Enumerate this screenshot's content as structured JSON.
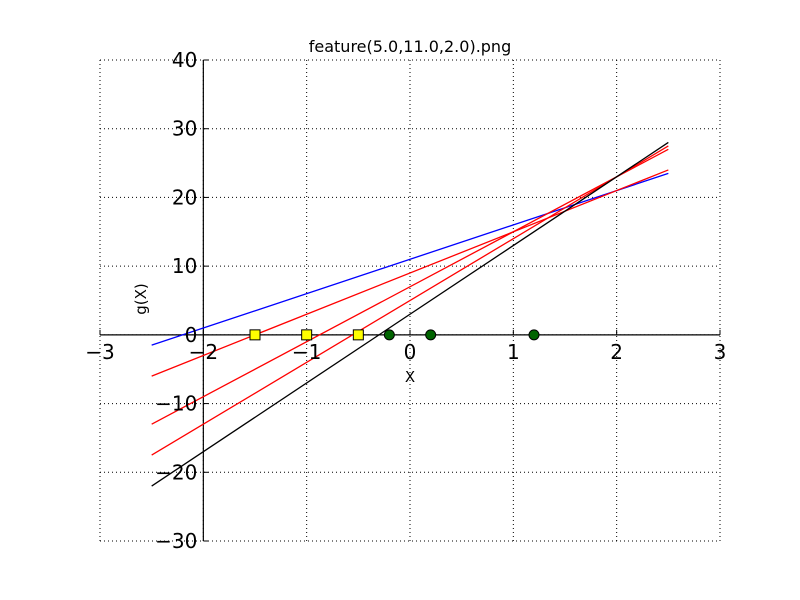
{
  "chart_data": {
    "type": "line",
    "title": "feature(5.0,11.0,2.0).png",
    "xlabel": "X",
    "ylabel": "g(X)",
    "xlim": [
      -3,
      3
    ],
    "ylim": [
      -30,
      40
    ],
    "grid": true,
    "x_ticks": [
      -3,
      -2,
      -1,
      0,
      1,
      2,
      3
    ],
    "y_ticks": [
      -30,
      -20,
      -10,
      0,
      10,
      20,
      30,
      40
    ],
    "x_tick_labels": [
      "−3",
      "−2",
      "−1",
      "0",
      "1",
      "2",
      "3"
    ],
    "y_tick_labels": [
      "−30",
      "−20",
      "−10",
      "0",
      "10",
      "20",
      "30",
      "40"
    ],
    "series": [
      {
        "color": "#0000ff",
        "x": [
          -2.5,
          2.5
        ],
        "y": [
          -1.5,
          23.5
        ]
      },
      {
        "color": "#ff0000",
        "x": [
          -2.5,
          2.5
        ],
        "y": [
          -6,
          24
        ]
      },
      {
        "color": "#ff0000",
        "x": [
          -2.5,
          2.5
        ],
        "y": [
          -13,
          27
        ]
      },
      {
        "color": "#ff0000",
        "x": [
          -2.5,
          2.5
        ],
        "y": [
          -17.5,
          27.5
        ]
      },
      {
        "color": "#000000",
        "x": [
          -2.5,
          2.5
        ],
        "y": [
          -22,
          28
        ]
      }
    ],
    "points": [
      {
        "marker": "square",
        "color": "#ffff00",
        "x": -1.5,
        "y": 0
      },
      {
        "marker": "square",
        "color": "#ffff00",
        "x": -1.0,
        "y": 0
      },
      {
        "marker": "square",
        "color": "#ffff00",
        "x": -0.5,
        "y": 0
      },
      {
        "marker": "circle",
        "color": "#006400",
        "x": -0.2,
        "y": 0
      },
      {
        "marker": "circle",
        "color": "#006400",
        "x": 0.2,
        "y": 0
      },
      {
        "marker": "circle",
        "color": "#006400",
        "x": 1.2,
        "y": 0
      }
    ]
  }
}
